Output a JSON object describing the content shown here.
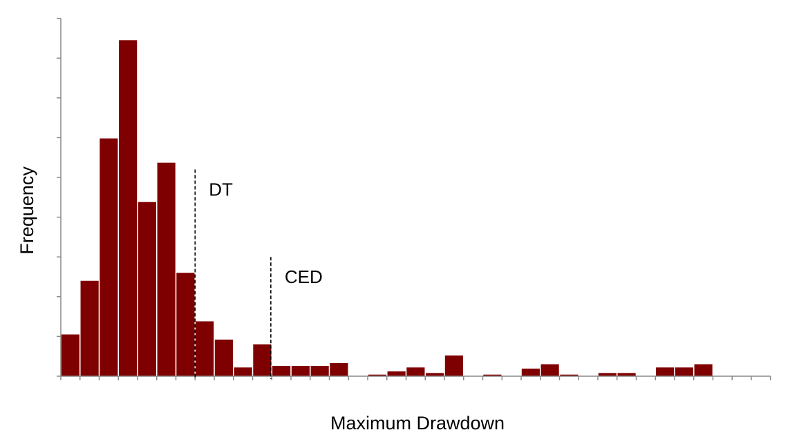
{
  "chart_data": {
    "type": "bar",
    "title": "",
    "xlabel": "Maximum Drawdown",
    "ylabel": "Frequency",
    "ylim": [
      0,
      9
    ],
    "bar_count": 37,
    "values": [
      1.05,
      2.4,
      5.98,
      8.45,
      4.38,
      5.37,
      2.6,
      1.38,
      0.92,
      0.22,
      0.8,
      0.26,
      0.26,
      0.26,
      0.33,
      0,
      0.04,
      0.12,
      0.22,
      0.08,
      0.52,
      0,
      0.04,
      0,
      0.19,
      0.3,
      0.04,
      0,
      0.08,
      0.08,
      0,
      0.22,
      0.22,
      0.3,
      0,
      0,
      0
    ],
    "bar_color": "#7f0000",
    "grid": false,
    "annotations": [
      {
        "label": "DT",
        "x_position_bins": 7.0,
        "line_height": 5.2,
        "style": "dashed"
      },
      {
        "label": "CED",
        "x_position_bins": 10.95,
        "line_height": 3.0,
        "style": "dashed"
      }
    ]
  }
}
